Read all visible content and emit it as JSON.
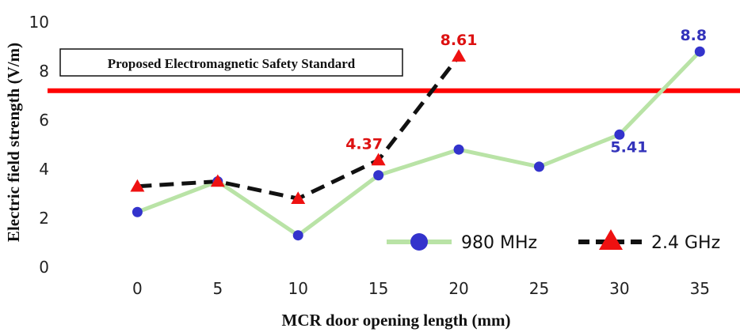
{
  "chart_data": {
    "type": "line",
    "x": [
      0,
      5,
      10,
      15,
      20,
      25,
      30,
      35
    ],
    "xlabel": "MCR door opening length (mm)",
    "ylabel": "Electric field strength (V/m)",
    "xlim": [
      -5,
      37.5
    ],
    "ylim": [
      0,
      10
    ],
    "x_ticks": [
      "0",
      "5",
      "10",
      "15",
      "20",
      "25",
      "30",
      "35"
    ],
    "y_ticks": [
      "0",
      "2",
      "4",
      "6",
      "8",
      "10"
    ],
    "grid": false,
    "legend_position": "bottom-right",
    "series": [
      {
        "name": "980 MHz",
        "color": "#b9e3a6",
        "marker_color": "#3333cc",
        "marker": "circle",
        "line_style": "solid",
        "x": [
          0,
          5,
          10,
          15,
          20,
          25,
          30,
          35
        ],
        "values": [
          2.25,
          3.5,
          1.3,
          3.75,
          4.8,
          4.1,
          5.41,
          8.8
        ]
      },
      {
        "name": "2.4 GHz",
        "color": "#111111",
        "marker_color": "#ee1111",
        "marker": "triangle",
        "line_style": "dashed",
        "x": [
          0,
          5,
          10,
          15,
          20
        ],
        "values": [
          3.3,
          3.5,
          2.8,
          4.37,
          8.61
        ]
      }
    ],
    "annotations": [
      {
        "text": "8.61",
        "x": 20,
        "y": 8.61,
        "color": "#dd1111"
      },
      {
        "text": "4.37",
        "x": 15,
        "y": 4.37,
        "color": "#dd1111"
      },
      {
        "text": "8.8",
        "x": 35,
        "y": 8.8,
        "color": "#3333bb"
      },
      {
        "text": "5.41",
        "x": 30,
        "y": 5.41,
        "color": "#3333bb"
      }
    ],
    "reference_line": {
      "y": 7.2,
      "color": "#ff0000",
      "label": "Proposed Electromagnetic Safety Standard"
    }
  }
}
